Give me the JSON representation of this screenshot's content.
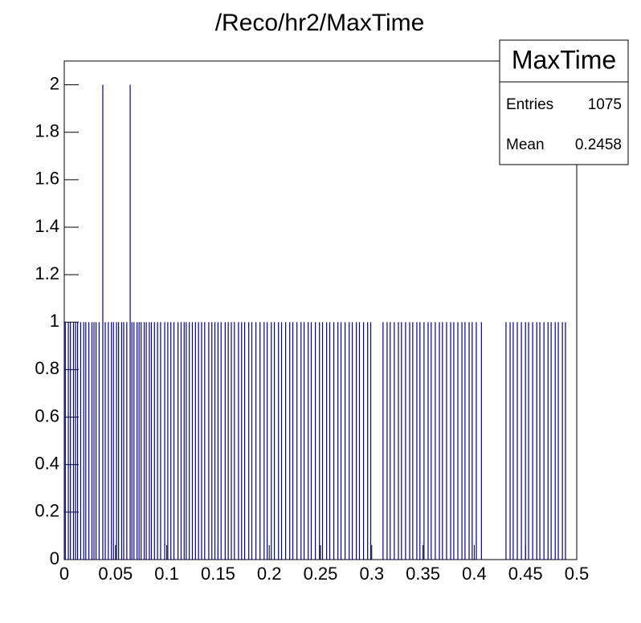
{
  "chart_data": {
    "type": "histogram",
    "title": "/Reco/hr2/MaxTime",
    "x": [
      0.001,
      0.004,
      0.006,
      0.009,
      0.011,
      0.013,
      0.016,
      0.019,
      0.021,
      0.024,
      0.027,
      0.029,
      0.031,
      0.034,
      0.0376,
      0.04,
      0.043,
      0.046,
      0.048,
      0.051,
      0.053,
      0.056,
      0.058,
      0.061,
      0.0643,
      0.066,
      0.068,
      0.071,
      0.073,
      0.075,
      0.078,
      0.08,
      0.083,
      0.085,
      0.088,
      0.091,
      0.094,
      0.098,
      0.101,
      0.104,
      0.107,
      0.111,
      0.114,
      0.117,
      0.119,
      0.122,
      0.125,
      0.128,
      0.131,
      0.134,
      0.137,
      0.141,
      0.144,
      0.147,
      0.15,
      0.153,
      0.157,
      0.16,
      0.163,
      0.166,
      0.17,
      0.173,
      0.176,
      0.18,
      0.183,
      0.187,
      0.191,
      0.195,
      0.198,
      0.202,
      0.205,
      0.209,
      0.212,
      0.216,
      0.22,
      0.223,
      0.227,
      0.231,
      0.234,
      0.238,
      0.241,
      0.245,
      0.249,
      0.252,
      0.256,
      0.259,
      0.263,
      0.267,
      0.27,
      0.274,
      0.278,
      0.281,
      0.285,
      0.288,
      0.292,
      0.296,
      0.299,
      0.311,
      0.315,
      0.318,
      0.322,
      0.326,
      0.329,
      0.333,
      0.337,
      0.34,
      0.344,
      0.347,
      0.351,
      0.355,
      0.358,
      0.362,
      0.366,
      0.369,
      0.373,
      0.377,
      0.38,
      0.384,
      0.388,
      0.391,
      0.395,
      0.398,
      0.402,
      0.407,
      0.431,
      0.435,
      0.438,
      0.442,
      0.446,
      0.45,
      0.453,
      0.457,
      0.461,
      0.464,
      0.468,
      0.472,
      0.475,
      0.479,
      0.482,
      0.486,
      0.489
    ],
    "values": [
      1,
      1,
      1,
      1,
      1,
      1,
      1,
      1,
      1,
      1,
      1,
      1,
      1,
      1,
      2,
      1,
      1,
      1,
      1,
      1,
      1,
      1,
      1,
      1,
      2,
      1,
      1,
      1,
      1,
      1,
      1,
      1,
      1,
      1,
      1,
      1,
      1,
      1,
      1,
      1,
      1,
      1,
      1,
      1,
      1,
      1,
      1,
      1,
      1,
      1,
      1,
      1,
      1,
      1,
      1,
      1,
      1,
      1,
      1,
      1,
      1,
      1,
      1,
      1,
      1,
      1,
      1,
      1,
      1,
      1,
      1,
      1,
      1,
      1,
      1,
      1,
      1,
      1,
      1,
      1,
      1,
      1,
      1,
      1,
      1,
      1,
      1,
      1,
      1,
      1,
      1,
      1,
      1,
      1,
      1,
      1,
      1,
      1,
      1,
      1,
      1,
      1,
      1,
      1,
      1,
      1,
      1,
      1,
      1,
      1,
      1,
      1,
      1,
      1,
      1,
      1,
      1,
      1,
      1,
      1,
      1,
      1,
      1,
      1,
      1,
      1,
      1,
      1,
      1,
      1,
      1,
      1,
      1,
      1,
      1,
      1,
      1,
      1,
      1,
      1,
      1
    ],
    "color": "#000099",
    "xlim": [
      0,
      0.5
    ],
    "xticks": [
      0,
      0.05,
      0.1,
      0.15,
      0.2,
      0.25,
      0.3,
      0.35,
      0.4,
      0.45,
      0.5
    ],
    "ylim": [
      0,
      2.1
    ],
    "yticks": [
      0,
      0.2,
      0.4,
      0.6,
      0.8,
      1,
      1.2,
      1.4,
      1.6,
      1.8,
      2
    ],
    "stats": {
      "name": "MaxTime",
      "entries_label": "Entries",
      "entries": 1075,
      "mean_label": "Mean",
      "mean": 0.2458
    }
  }
}
